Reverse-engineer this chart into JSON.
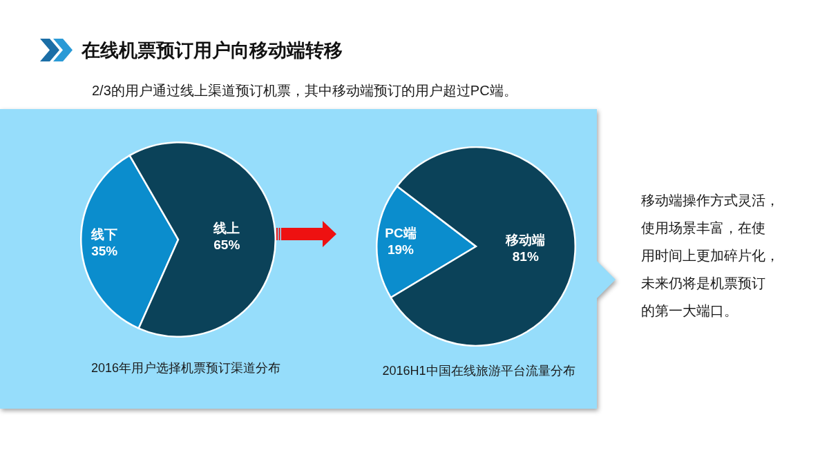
{
  "chart_data": [
    {
      "type": "other",
      "title": "在线机票预订用户向移动端转移",
      "subtitle": "2/3的用户通过线上渠道预订机票，其中移动端预订的用户超过PC端。"
    },
    {
      "type": "pie",
      "title": "2016年用户选择机票预订渠道分布",
      "categories": [
        "线下",
        "线上"
      ],
      "values": [
        35,
        65
      ],
      "colors": [
        "#0b8dcd",
        "#0b4259"
      ],
      "value_labels": [
        "35%",
        "65%"
      ]
    },
    {
      "type": "pie",
      "title": "2016H1中国在线旅游平台流量分布",
      "categories": [
        "PC端",
        "移动端"
      ],
      "values": [
        19,
        81
      ],
      "colors": [
        "#0b8dcd",
        "#0b4259"
      ],
      "value_labels": [
        "19%",
        "81%"
      ]
    },
    {
      "type": "other",
      "annotations": [
        "移动端操作方式灵活，使用场景丰富，在使用时间上更加碎片化，未来仍将是机票预订的第一大端口。"
      ]
    }
  ]
}
